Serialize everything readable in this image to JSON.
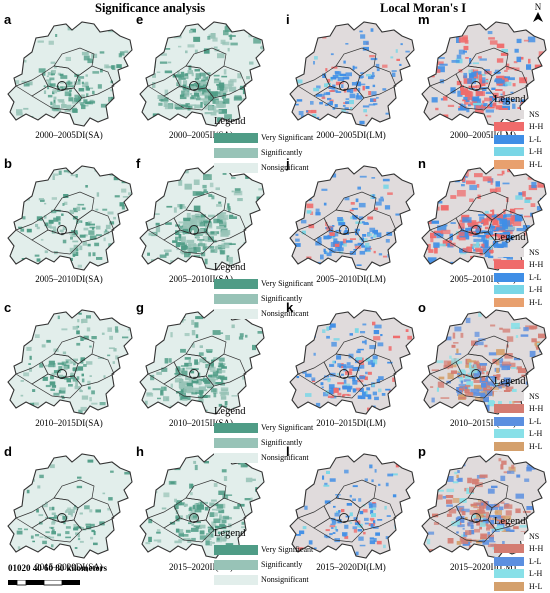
{
  "headers": {
    "significance": "Significance analysis",
    "morans": "Local Moran's I"
  },
  "colors": {
    "base": "#e2eeeb",
    "very_sig": "#4f9c86",
    "sig": "#98c3b7",
    "nonsig": "#e2eeeb",
    "ns": "#e0dbdc",
    "hh": "#ef6b6b",
    "ll": "#3f8ee6",
    "lh": "#79d6e6",
    "hl": "#e8a06e",
    "hh2": "#d47c72",
    "ll2": "#5b8fe0",
    "lh2": "#88e0e8",
    "hl2": "#d4a06c"
  },
  "panels": [
    {
      "letter": "a",
      "caption": "2000–2005DI(SA)",
      "mode": "sa",
      "intensity": 0.35
    },
    {
      "letter": "e",
      "caption": "2000–2005II(SA)",
      "mode": "sa",
      "intensity": 0.6
    },
    {
      "letter": "i",
      "caption": "2000–2005DI(LM)",
      "mode": "lm_di",
      "intensity": 0.3
    },
    {
      "letter": "m",
      "caption": "2000–2005II(LM)",
      "mode": "lm_ii",
      "intensity": 0.7
    },
    {
      "letter": "b",
      "caption": "2005–2010DI(SA)",
      "mode": "sa",
      "intensity": 0.3
    },
    {
      "letter": "f",
      "caption": "2005–2010II(SA)",
      "mode": "sa",
      "intensity": 0.65
    },
    {
      "letter": "j",
      "caption": "2005–2010DI(LM)",
      "mode": "lm_di",
      "intensity": 0.35
    },
    {
      "letter": "n",
      "caption": "2005–2010II(LM)",
      "mode": "lm_ii",
      "intensity": 0.8
    },
    {
      "letter": "c",
      "caption": "2010–2015DI(SA)",
      "mode": "sa",
      "intensity": 0.25
    },
    {
      "letter": "g",
      "caption": "2010–2015II(SA)",
      "mode": "sa",
      "intensity": 0.55
    },
    {
      "letter": "k",
      "caption": "2010–2015DI(LM)",
      "mode": "lm_di",
      "intensity": 0.4
    },
    {
      "letter": "o",
      "caption": "2010–2015II(LM)",
      "mode": "lm_ii2",
      "intensity": 0.7
    },
    {
      "letter": "d",
      "caption": "2015–2020DI(SA)",
      "mode": "sa",
      "intensity": 0.15
    },
    {
      "letter": "h",
      "caption": "2015–2020II(SA)",
      "mode": "sa",
      "intensity": 0.45
    },
    {
      "letter": "l",
      "caption": "2015–2020DI(LM)",
      "mode": "lm_di",
      "intensity": 0.2
    },
    {
      "letter": "p",
      "caption": "2015–2020II(LM)",
      "mode": "lm_ii2",
      "intensity": 0.6
    }
  ],
  "legend_sa": {
    "title": "Legend",
    "items": [
      {
        "label": "Very Significant",
        "color": "#4f9c86"
      },
      {
        "label": "Significantly",
        "color": "#98c3b7"
      },
      {
        "label": "Nonsignificant",
        "color": "#e2eeeb"
      }
    ]
  },
  "legend_lm": {
    "title": "Legend",
    "items": [
      {
        "label": "NS",
        "color": "#e0dbdc"
      },
      {
        "label": "H-H",
        "color": "#ef6b6b"
      },
      {
        "label": "L-L",
        "color": "#3f8ee6"
      },
      {
        "label": "L-H",
        "color": "#79d6e6"
      },
      {
        "label": "H-L",
        "color": "#e8a06e"
      }
    ]
  },
  "legend_lm2": {
    "title": "Legend",
    "items": [
      {
        "label": "NS",
        "color": "#e0dbdc"
      },
      {
        "label": "H-H",
        "color": "#d47c72"
      },
      {
        "label": "L-L",
        "color": "#5b8fe0"
      },
      {
        "label": "L-H",
        "color": "#88e0e8"
      },
      {
        "label": "H-L",
        "color": "#d4a06c"
      }
    ]
  },
  "north": {
    "label": "N"
  },
  "scale": {
    "ticks": "01020  40  60  80",
    "unit": "kilometers"
  }
}
